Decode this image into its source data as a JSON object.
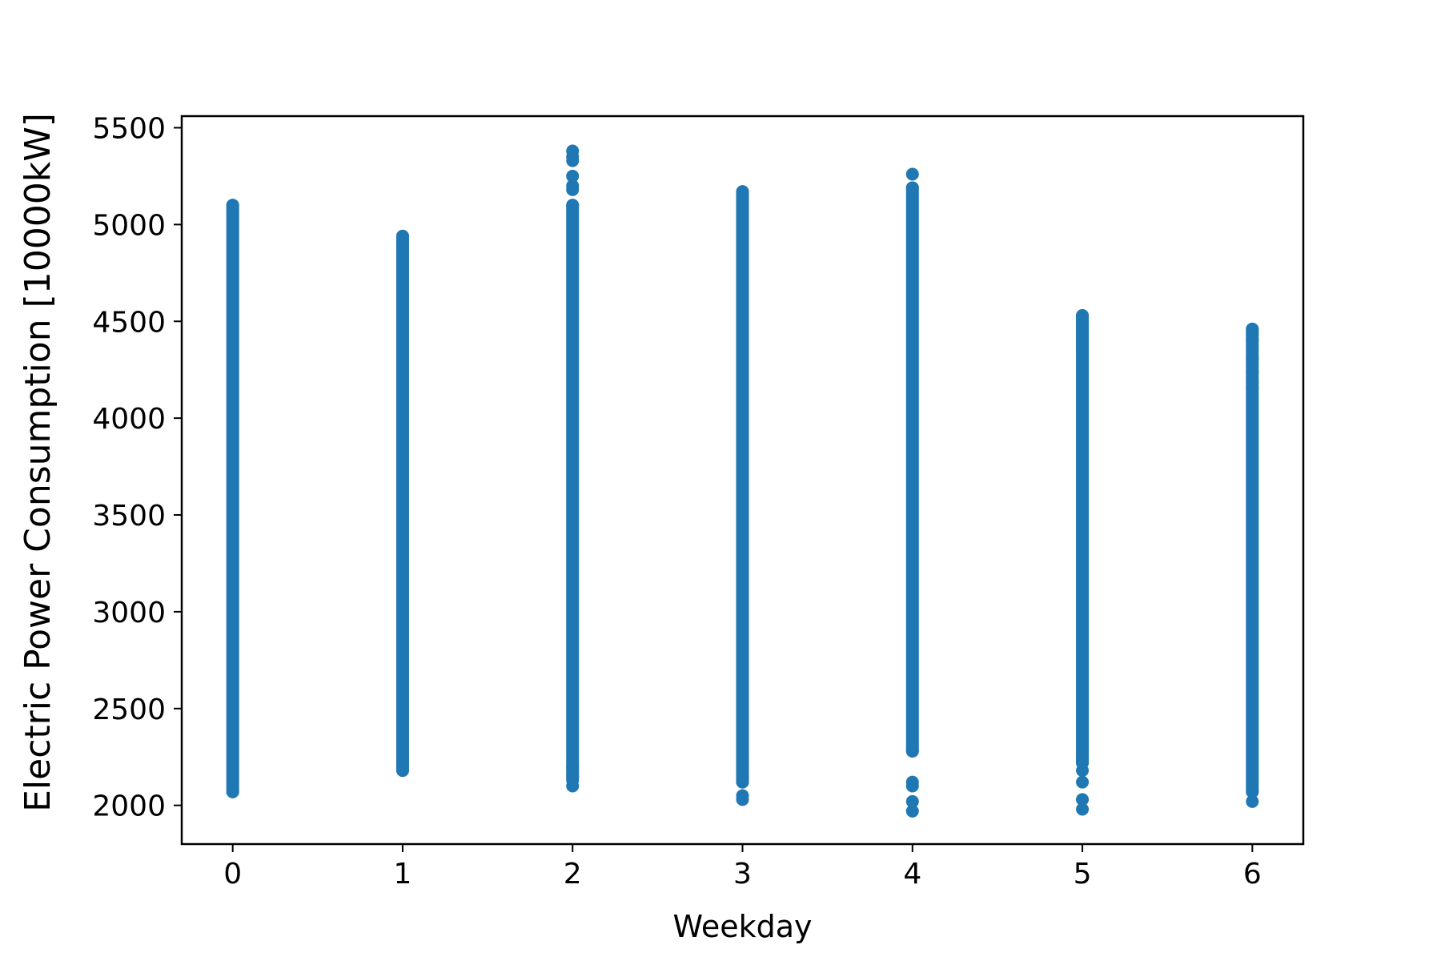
{
  "chart_data": {
    "type": "scatter",
    "title": "",
    "xlabel": "Weekday",
    "ylabel": "Electric Power Consumption [10000kW]",
    "xlim": [
      -0.3,
      6.3
    ],
    "ylim": [
      1800,
      5560
    ],
    "xticks": [
      0,
      1,
      2,
      3,
      4,
      5,
      6
    ],
    "yticks": [
      2000,
      2500,
      3000,
      3500,
      4000,
      4500,
      5000,
      5500
    ],
    "grid": false,
    "marker_color": "#1f77b4",
    "series": [
      {
        "ranges": [
          {
            "x": 0,
            "min": 2070,
            "max": 5100
          },
          {
            "x": 1,
            "min": 2180,
            "max": 4940
          },
          {
            "x": 2,
            "min": 2130,
            "max": 5100
          },
          {
            "x": 3,
            "min": 2120,
            "max": 5170
          },
          {
            "x": 4,
            "min": 2280,
            "max": 5190
          },
          {
            "x": 5,
            "min": 2220,
            "max": 4530
          },
          {
            "x": 6,
            "min": 2070,
            "max": 4460
          }
        ],
        "points": [
          {
            "x": 0,
            "y": 2070
          },
          {
            "x": 0,
            "y": 5100
          },
          {
            "x": 1,
            "y": 2180
          },
          {
            "x": 1,
            "y": 2210
          },
          {
            "x": 1,
            "y": 2250
          },
          {
            "x": 1,
            "y": 4940
          },
          {
            "x": 2,
            "y": 2100
          },
          {
            "x": 2,
            "y": 2150
          },
          {
            "x": 2,
            "y": 2200
          },
          {
            "x": 2,
            "y": 5100
          },
          {
            "x": 2,
            "y": 5180
          },
          {
            "x": 2,
            "y": 5200
          },
          {
            "x": 2,
            "y": 5250
          },
          {
            "x": 2,
            "y": 5330
          },
          {
            "x": 2,
            "y": 5350
          },
          {
            "x": 2,
            "y": 5380
          },
          {
            "x": 3,
            "y": 2030
          },
          {
            "x": 3,
            "y": 2050
          },
          {
            "x": 3,
            "y": 2120
          },
          {
            "x": 3,
            "y": 2180
          },
          {
            "x": 3,
            "y": 2230
          },
          {
            "x": 3,
            "y": 5170
          },
          {
            "x": 4,
            "y": 1970
          },
          {
            "x": 4,
            "y": 2020
          },
          {
            "x": 4,
            "y": 2100
          },
          {
            "x": 4,
            "y": 2120
          },
          {
            "x": 4,
            "y": 2280
          },
          {
            "x": 4,
            "y": 5190
          },
          {
            "x": 4,
            "y": 5260
          },
          {
            "x": 5,
            "y": 1980
          },
          {
            "x": 5,
            "y": 2030
          },
          {
            "x": 5,
            "y": 2120
          },
          {
            "x": 5,
            "y": 2180
          },
          {
            "x": 5,
            "y": 2220
          },
          {
            "x": 5,
            "y": 4350
          },
          {
            "x": 5,
            "y": 4400
          },
          {
            "x": 5,
            "y": 4450
          },
          {
            "x": 5,
            "y": 4490
          },
          {
            "x": 5,
            "y": 4530
          },
          {
            "x": 6,
            "y": 2020
          },
          {
            "x": 6,
            "y": 2070
          },
          {
            "x": 6,
            "y": 4160
          },
          {
            "x": 6,
            "y": 4190
          },
          {
            "x": 6,
            "y": 4240
          },
          {
            "x": 6,
            "y": 4310
          },
          {
            "x": 6,
            "y": 4400
          },
          {
            "x": 6,
            "y": 4440
          },
          {
            "x": 6,
            "y": 4460
          }
        ]
      }
    ]
  }
}
